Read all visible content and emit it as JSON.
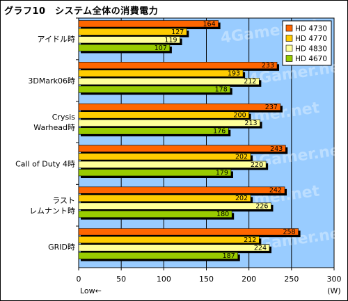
{
  "chart_data": {
    "type": "bar",
    "orientation": "horizontal",
    "title": "グラフ10　システム全体の消費電力",
    "categories": [
      [
        "アイドル時"
      ],
      [
        "3DMark06時"
      ],
      [
        "Crysis",
        "Warhead時"
      ],
      [
        "Call of Duty 4時"
      ],
      [
        "ラスト",
        "レムナント時"
      ],
      [
        "GRID時"
      ]
    ],
    "series": [
      {
        "name": "HD 4730",
        "color": "#FF6600",
        "values": [
          164,
          233,
          237,
          243,
          242,
          258
        ]
      },
      {
        "name": "HD 4770",
        "color": "#FFCC00",
        "values": [
          127,
          193,
          200,
          202,
          202,
          212
        ]
      },
      {
        "name": "HD 4830",
        "color": "#FFFF99",
        "values": [
          119,
          212,
          213,
          220,
          226,
          224
        ]
      },
      {
        "name": "HD 4670",
        "color": "#99CC00",
        "values": [
          107,
          178,
          176,
          179,
          180,
          187
        ]
      }
    ],
    "xlim": [
      0,
      300
    ],
    "xticks": [
      0,
      50,
      100,
      150,
      200,
      250,
      300
    ],
    "xlabel_left": "Low←",
    "unit": "(W)",
    "watermark": "4Gamer.net",
    "legend_position": "top-right",
    "grid": true,
    "plot_bg": "#99CCFF"
  }
}
